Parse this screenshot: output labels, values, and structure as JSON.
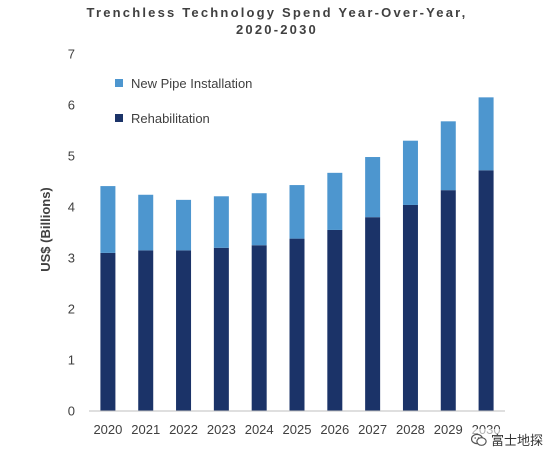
{
  "chart_data": {
    "type": "bar",
    "stacked": true,
    "title_lines": [
      "Trenchless Technology Spend Year-Over-Year,",
      "2020-2030"
    ],
    "xlabel": "",
    "ylabel": "US$ (Billions)",
    "categories": [
      "2020",
      "2021",
      "2022",
      "2023",
      "2024",
      "2025",
      "2026",
      "2027",
      "2028",
      "2029",
      "2030"
    ],
    "series": [
      {
        "name": "Rehabilitation",
        "color": "#1b3368",
        "values": [
          3.1,
          3.15,
          3.15,
          3.2,
          3.25,
          3.38,
          3.55,
          3.8,
          4.04,
          4.33,
          4.72
        ]
      },
      {
        "name": "New Pipe Installation",
        "color": "#4d96cf",
        "values": [
          1.31,
          1.09,
          0.99,
          1.01,
          1.02,
          1.05,
          1.12,
          1.18,
          1.26,
          1.35,
          1.43
        ]
      }
    ],
    "legend_order": [
      "New Pipe Installation",
      "Rehabilitation"
    ],
    "legend_position": "top-left",
    "ylim": [
      0,
      7
    ],
    "yticks": [
      "0",
      "1",
      "2",
      "3",
      "4",
      "5",
      "6",
      "7"
    ],
    "grid": false
  },
  "watermark": {
    "text": "富士地探",
    "icon": "wechat-icon"
  }
}
